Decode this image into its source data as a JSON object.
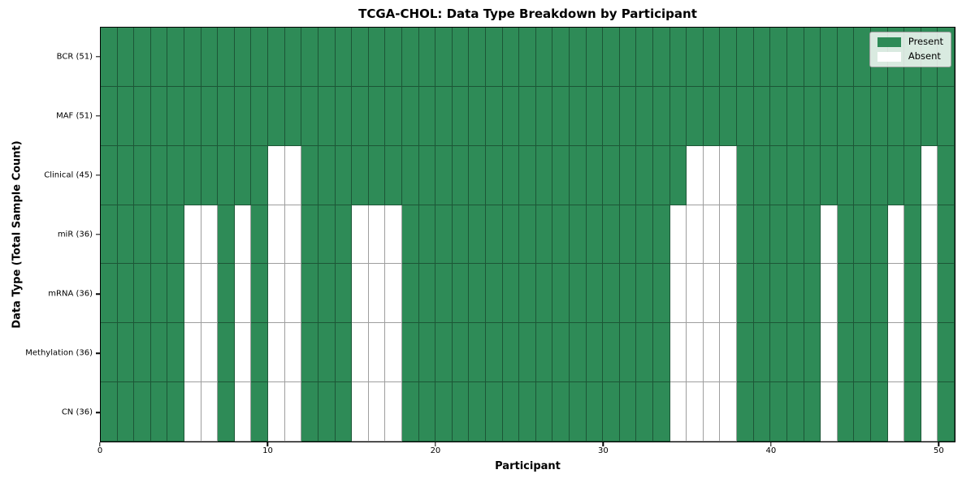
{
  "chart_data": {
    "type": "heatmap",
    "title": "TCGA-CHOL: Data Type Breakdown by Participant",
    "xlabel": "Participant",
    "ylabel": "Data Type (Total Sample Count)",
    "n_participants": 51,
    "x_range": [
      0,
      51
    ],
    "x_ticks": [
      0,
      10,
      20,
      30,
      40,
      50
    ],
    "grid": true,
    "legend_position": "upper right",
    "colors": {
      "present": "#2e8b57",
      "absent": "#ffffff",
      "gridline": "rgba(0,0,0,0.38)"
    },
    "legend": [
      {
        "label": "Present",
        "color": "#2e8b57"
      },
      {
        "label": "Absent",
        "color": "#ffffff"
      }
    ],
    "rows": [
      {
        "label": "BCR (51)",
        "present_count": 51,
        "absent_participants": []
      },
      {
        "label": "MAF (51)",
        "present_count": 51,
        "absent_participants": []
      },
      {
        "label": "Clinical (45)",
        "present_count": 45,
        "absent_participants": [
          10,
          11,
          35,
          36,
          37,
          49
        ]
      },
      {
        "label": "miR (36)",
        "present_count": 36,
        "absent_participants": [
          5,
          6,
          8,
          10,
          11,
          15,
          16,
          17,
          34,
          35,
          36,
          37,
          43,
          47,
          49
        ]
      },
      {
        "label": "mRNA (36)",
        "present_count": 36,
        "absent_participants": [
          5,
          6,
          8,
          10,
          11,
          15,
          16,
          17,
          34,
          35,
          36,
          37,
          43,
          47,
          49
        ]
      },
      {
        "label": "Methylation (36)",
        "present_count": 36,
        "absent_participants": [
          5,
          6,
          8,
          10,
          11,
          15,
          16,
          17,
          34,
          35,
          36,
          37,
          43,
          47,
          49
        ]
      },
      {
        "label": "CN (36)",
        "present_count": 36,
        "absent_participants": [
          5,
          6,
          8,
          10,
          11,
          15,
          16,
          17,
          34,
          35,
          36,
          37,
          43,
          47,
          49
        ]
      }
    ]
  }
}
